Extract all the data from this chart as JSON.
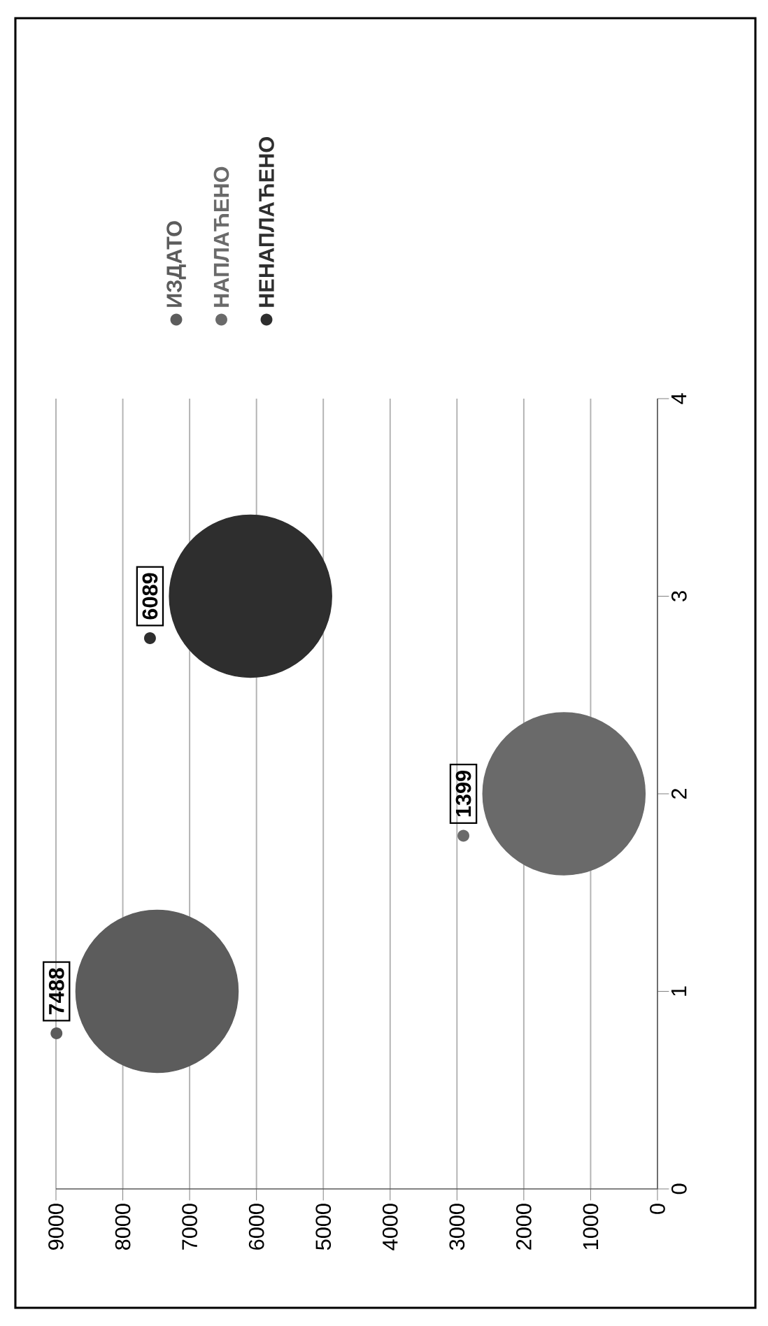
{
  "chart_data": {
    "type": "bubble",
    "xlim": [
      9000,
      0
    ],
    "xticks": [
      0,
      1000,
      2000,
      3000,
      4000,
      5000,
      6000,
      7000,
      8000,
      9000
    ],
    "ylim": [
      0,
      4
    ],
    "yticks": [
      0,
      1,
      2,
      3,
      4
    ],
    "grid": "x",
    "legend": "top",
    "annotations": [
      "7488",
      "1399",
      "6089"
    ],
    "series": [
      {
        "name": "ИЗДАТО",
        "color": "#5c5c5c",
        "x": [
          7488
        ],
        "values": [
          1
        ],
        "sizes": [
          1
        ]
      },
      {
        "name": "НАПЛАЋЕНО",
        "color": "#6a6a6a",
        "x": [
          1399
        ],
        "values": [
          2
        ],
        "sizes": [
          1
        ]
      },
      {
        "name": "НЕНАПЛАЋЕНО",
        "color": "#2e2e2e",
        "x": [
          6089
        ],
        "values": [
          3
        ],
        "sizes": [
          1
        ]
      }
    ]
  }
}
